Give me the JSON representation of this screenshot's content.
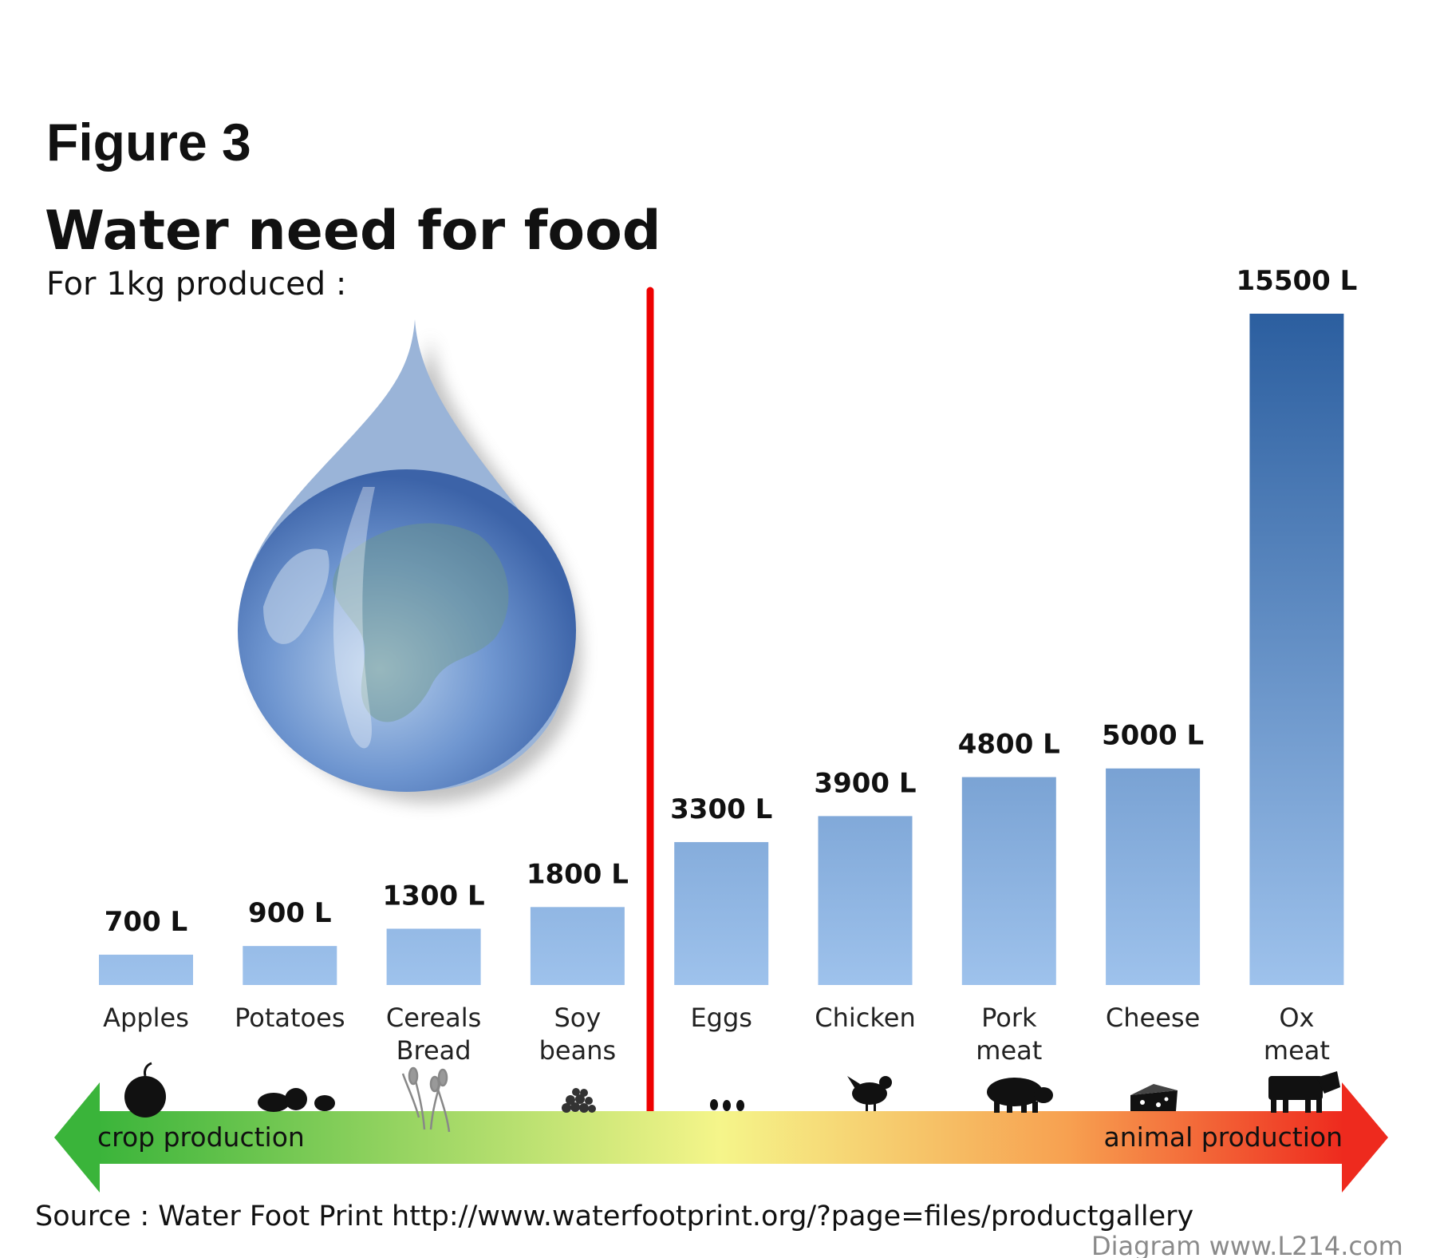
{
  "figure_label": "Figure 3",
  "source_text": "Source : Water Foot Print http://www.waterfootprint.org/?page=files/productgallery",
  "credit_text": "Diagram www.L214.com",
  "colors": {
    "bar_top": "#2b5e9f",
    "bar_bottom": "#9ec2ec",
    "divider": "#ee0000",
    "arrow_left": "#3ab43a",
    "arrow_mid": "#f5f58a",
    "arrow_right": "#ee2a1e",
    "text": "#111111"
  },
  "icons": [
    "apple-icon",
    "potatoes-icon",
    "wheat-icon",
    "soybeans-icon",
    "eggs-icon",
    "chicken-icon",
    "pig-icon",
    "cheese-icon",
    "cow-icon",
    "water-drop-earth-icon"
  ],
  "chart_data": {
    "type": "bar",
    "title": "Water need for food",
    "subtitle": "For 1kg produced :",
    "unit": "L",
    "categories": [
      "Apples",
      "Potatoes",
      "Cereals\nBread",
      "Soy\nbeans",
      "Eggs",
      "Chicken",
      "Pork\nmeat",
      "Cheese",
      "Ox\nmeat"
    ],
    "values": [
      700,
      900,
      1300,
      1800,
      3300,
      3900,
      4800,
      5000,
      15500
    ],
    "value_labels": [
      "700 L",
      "900 L",
      "1300 L",
      "1800 L",
      "3300 L",
      "3900 L",
      "4800 L",
      "5000 L",
      "15500 L"
    ],
    "groups": [
      {
        "label": "crop production",
        "categories": [
          "Apples",
          "Potatoes",
          "Cereals\nBread",
          "Soy\nbeans"
        ]
      },
      {
        "label": "animal production",
        "categories": [
          "Eggs",
          "Chicken",
          "Pork\nmeat",
          "Cheese",
          "Ox\nmeat"
        ]
      }
    ],
    "ylim": [
      0,
      15500
    ],
    "grid": false,
    "legend": "none"
  }
}
